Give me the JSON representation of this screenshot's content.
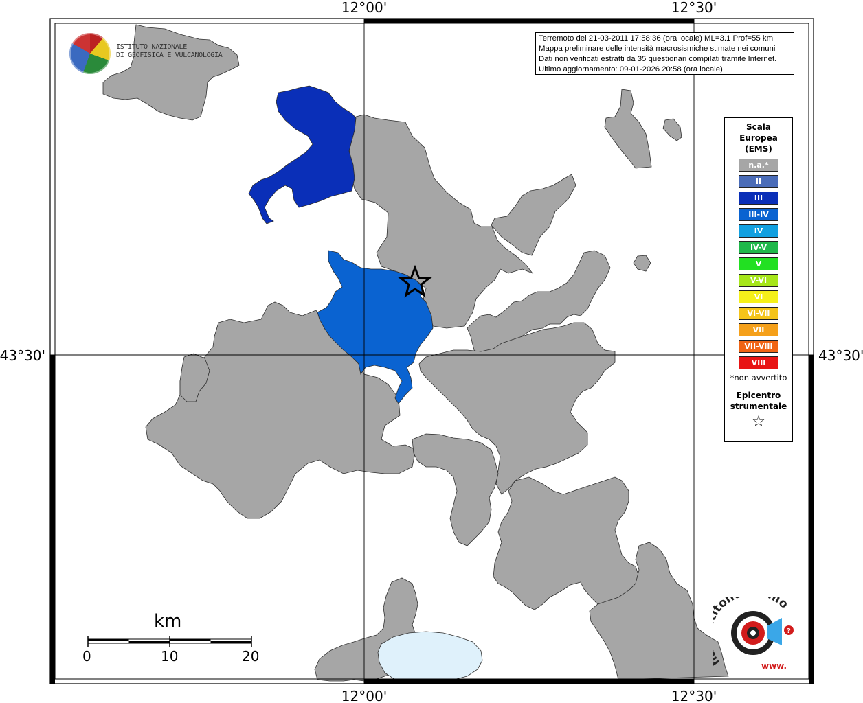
{
  "map": {
    "grid": {
      "lon_labels_top": [
        "12°00'",
        "12°30'"
      ],
      "lon_labels_bottom": [
        "12°00'",
        "12°30'"
      ],
      "lat_labels": [
        "43°30'",
        "43°30'"
      ]
    },
    "epicenter": {
      "symbol": "star"
    },
    "colors": {
      "na": "#a6a6a6",
      "III": "#0a2fb8",
      "III-IV": "#0a63d1",
      "lake": "#dff1fb",
      "background": "#ffffff",
      "border": "#333333"
    },
    "regions": [
      {
        "name": "comune-gray",
        "intensity": "n.a.*"
      },
      {
        "name": "comune-III",
        "intensity": "III"
      },
      {
        "name": "comune-III-IV",
        "intensity": "III-IV"
      },
      {
        "name": "lake",
        "intensity": ""
      }
    ]
  },
  "info": {
    "lines": [
      "Terremoto del 21-03-2011 17:58:36 (ora locale) ML=3.1 Prof=55 km",
      "Mappa preliminare delle intensità macrosismiche stimate nei comuni",
      "Dati non verificati estratti da 35 questionari compilati tramite Internet.",
      "Ultimo aggiornamento: 09-01-2026 20:58 (ora locale)"
    ]
  },
  "legend": {
    "title_lines": [
      "Scala",
      "Europea",
      "(EMS)"
    ],
    "items": [
      {
        "label": "n.a.*",
        "color": "#a6a6a6"
      },
      {
        "label": "II",
        "color": "#4a6cb8"
      },
      {
        "label": "III",
        "color": "#0a2fb8"
      },
      {
        "label": "III-IV",
        "color": "#0a63d1"
      },
      {
        "label": "IV",
        "color": "#12a0e0"
      },
      {
        "label": "IV-V",
        "color": "#1fb84a"
      },
      {
        "label": "V",
        "color": "#22e022"
      },
      {
        "label": "V-VI",
        "color": "#a6e61a"
      },
      {
        "label": "VI",
        "color": "#f5f01a"
      },
      {
        "label": "VI-VII",
        "color": "#f5c41a"
      },
      {
        "label": "VII",
        "color": "#f5a01a"
      },
      {
        "label": "VII-VIII",
        "color": "#f06414"
      },
      {
        "label": "VIII",
        "color": "#e81414"
      }
    ],
    "note": "*non avvertito",
    "epicenter_lines": [
      "Epicentro",
      "strumentale"
    ],
    "epicenter_symbol": "☆"
  },
  "scale": {
    "unit": "km",
    "labels": [
      "0",
      "10",
      "20"
    ]
  },
  "logos": {
    "ingv": {
      "lines": [
        "ISTITUTO NAZIONALE",
        "DI GEOFISICA E VULCANOLOGIA"
      ]
    },
    "hsit": {
      "text": "haisentitoilterremoto.it",
      "prefix": "www."
    }
  }
}
